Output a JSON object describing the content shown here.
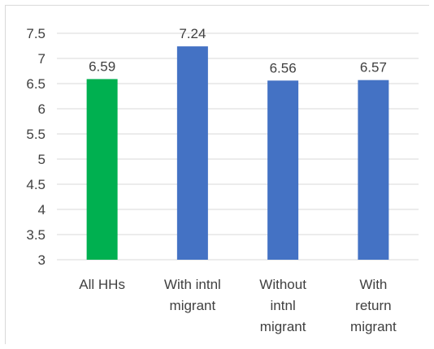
{
  "chart_data": {
    "type": "bar",
    "title": "",
    "xlabel": "",
    "ylabel": "",
    "categories": [
      [
        "All HHs"
      ],
      [
        "With intnl",
        "migrant"
      ],
      [
        "Without",
        "intnl",
        "migrant"
      ],
      [
        "With",
        "return",
        "migrant"
      ]
    ],
    "values": [
      6.59,
      7.24,
      6.56,
      6.57
    ],
    "data_labels": [
      "6.59",
      "7.24",
      "6.56",
      "6.57"
    ],
    "bar_colors": [
      "#00b050",
      "#4472c4",
      "#4472c4",
      "#4472c4"
    ],
    "ylim": [
      3,
      7.5
    ],
    "yticks": [
      "3",
      "3.5",
      "4",
      "4.5",
      "5",
      "5.5",
      "6",
      "6.5",
      "7",
      "7.5"
    ],
    "grid": true,
    "gridline_color": "#d9d9d9",
    "legend": "none"
  }
}
